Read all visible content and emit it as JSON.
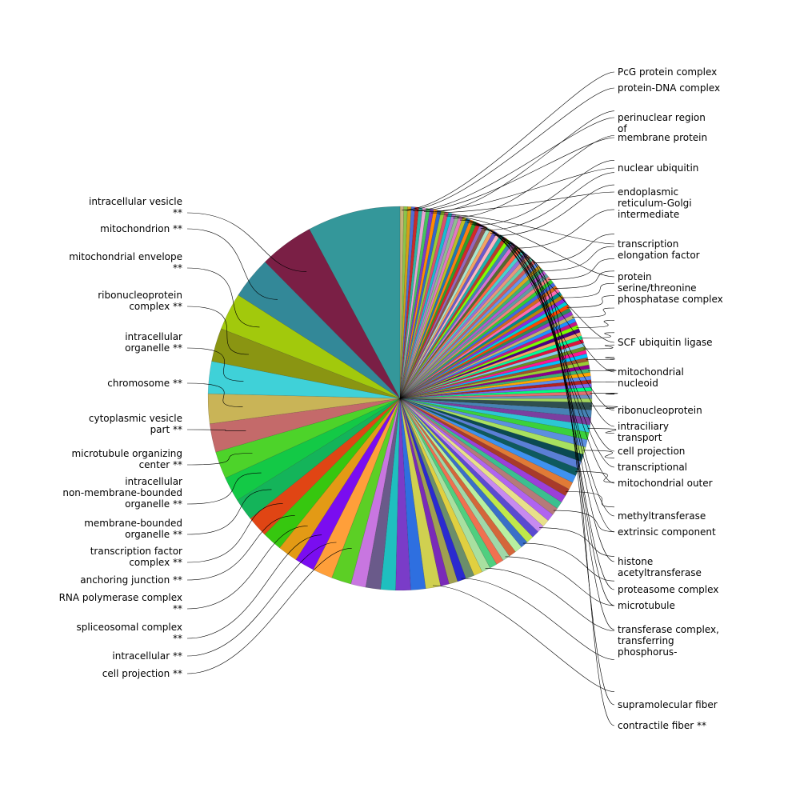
{
  "chart_data": {
    "type": "pie",
    "title": "",
    "start": "12 o'clock",
    "direction": "clockwise",
    "labels_with_markers": "**",
    "slices": [
      {
        "label": "PcG protein complex",
        "value": 0.3,
        "color": "#c8b27a"
      },
      {
        "label": "protein-DNA complex",
        "value": 0.3,
        "color": "#8bc34a"
      },
      {
        "label": "",
        "value": 0.3,
        "color": "#d4a017"
      },
      {
        "label": "perinuclear region of",
        "value": 0.3,
        "color": "#4f6cd6"
      },
      {
        "label": "membrane protein",
        "value": 0.3,
        "color": "#c92a2a"
      },
      {
        "label": "",
        "value": 0.3,
        "color": "#2fb5a4"
      },
      {
        "label": "nuclear ubiquitin",
        "value": 0.3,
        "color": "#e6a5d6"
      },
      {
        "label": "",
        "value": 0.3,
        "color": "#45c45c"
      },
      {
        "label": "endoplasmic reticulum-Golgi intermediate",
        "value": 0.3,
        "color": "#7a3cc8"
      },
      {
        "label": "",
        "value": 0.3,
        "color": "#ff8c00"
      },
      {
        "label": "transcription elongation factor",
        "value": 0.3,
        "color": "#3366cc"
      },
      {
        "label": "",
        "value": 0.3,
        "color": "#9acd32"
      },
      {
        "label": "protein serine/threonine phosphatase complex",
        "value": 0.3,
        "color": "#d94f70"
      },
      {
        "label": "",
        "value": 0.3,
        "color": "#17becf"
      },
      {
        "label": "SCF ubiquitin ligase",
        "value": 0.3,
        "color": "#b27ad4"
      },
      {
        "label": "",
        "value": 0.3,
        "color": "#8fbc8f"
      },
      {
        "label": "mitochondrial nucleoid",
        "value": 0.3,
        "color": "#e377c2"
      },
      {
        "label": "",
        "value": 0.3,
        "color": "#bcbd22"
      },
      {
        "label": "ribonucleoprotein",
        "value": 0.3,
        "color": "#1f77b4"
      },
      {
        "label": "intraciliary transport",
        "value": 0.3,
        "color": "#ff7f0e"
      },
      {
        "label": "cell projection",
        "value": 0.3,
        "color": "#2ca02c"
      },
      {
        "label": "",
        "value": 0.3,
        "color": "#d62728"
      },
      {
        "label": "transcriptional",
        "value": 0.3,
        "color": "#9467bd"
      },
      {
        "label": "mitochondrial outer",
        "value": 0.3,
        "color": "#8c564b"
      },
      {
        "label": "",
        "value": 0.3,
        "color": "#a8e6cf"
      },
      {
        "label": "methyltransferase",
        "value": 0.3,
        "color": "#f4a261"
      },
      {
        "label": "extrinsic component",
        "value": 0.3,
        "color": "#6a5acd"
      },
      {
        "label": "",
        "value": 0.3,
        "color": "#ffb6c1"
      },
      {
        "label": "histone acetyltransferase",
        "value": 0.3,
        "color": "#20b2aa"
      },
      {
        "label": "proteasome complex",
        "value": 0.3,
        "color": "#c0392b"
      },
      {
        "label": "microtubule",
        "value": 0.3,
        "color": "#7fff00"
      },
      {
        "label": "transferase complex, transferring phosphorus-",
        "value": 0.3,
        "color": "#4682b4"
      },
      {
        "label": "",
        "value": 0.3,
        "color": "#da70d6"
      },
      {
        "label": "",
        "value": 0.3,
        "color": "#556b2f"
      },
      {
        "label": "supramolecular fiber",
        "value": 0.3,
        "color": "#ff6347"
      },
      {
        "label": "",
        "value": 0.3,
        "color": "#48d1cc"
      },
      {
        "label": "contractile fiber **",
        "value": 0.3,
        "color": "#9370db"
      },
      {
        "label": "",
        "value": 0.3,
        "color": "#e9967a"
      },
      {
        "label": "",
        "value": 0.3,
        "color": "#66cdaa"
      },
      {
        "label": "",
        "value": 0.3,
        "color": "#cd5c5c"
      },
      {
        "label": "",
        "value": 0.3,
        "color": "#6495ed"
      },
      {
        "label": "",
        "value": 0.3,
        "color": "#daa520"
      },
      {
        "label": "",
        "value": 0.3,
        "color": "#3cb371"
      },
      {
        "label": "",
        "value": 0.3,
        "color": "#ba55d3"
      },
      {
        "label": "",
        "value": 0.3,
        "color": "#5f9ea0"
      },
      {
        "label": "",
        "value": 0.3,
        "color": "#f08080"
      },
      {
        "label": "",
        "value": 0.3,
        "color": "#32cd32"
      },
      {
        "label": "",
        "value": 0.3,
        "color": "#4169e1"
      },
      {
        "label": "",
        "value": 0.3,
        "color": "#d2691e"
      },
      {
        "label": "",
        "value": 0.3,
        "color": "#ff69b4"
      },
      {
        "label": "",
        "value": 0.3,
        "color": "#008b8b"
      },
      {
        "label": "",
        "value": 0.3,
        "color": "#b8860b"
      },
      {
        "label": "",
        "value": 0.3,
        "color": "#8a2be2"
      },
      {
        "label": "",
        "value": 0.3,
        "color": "#00ced1"
      },
      {
        "label": "",
        "value": 0.3,
        "color": "#ff4500"
      },
      {
        "label": "",
        "value": 0.3,
        "color": "#2e8b57"
      },
      {
        "label": "",
        "value": 0.3,
        "color": "#9932cc"
      },
      {
        "label": "",
        "value": 0.3,
        "color": "#bdb76b"
      },
      {
        "label": "",
        "value": 0.3,
        "color": "#1e90ff"
      },
      {
        "label": "",
        "value": 0.3,
        "color": "#c71585"
      },
      {
        "label": "",
        "value": 0.3,
        "color": "#7cfc00"
      },
      {
        "label": "",
        "value": 0.3,
        "color": "#4b0082"
      },
      {
        "label": "",
        "value": 0.3,
        "color": "#f4a460"
      },
      {
        "label": "",
        "value": 0.3,
        "color": "#00fa9a"
      },
      {
        "label": "",
        "value": 0.3,
        "color": "#dc143c"
      },
      {
        "label": "",
        "value": 0.3,
        "color": "#87ceeb"
      },
      {
        "label": "",
        "value": 0.3,
        "color": "#6b8e23"
      },
      {
        "label": "",
        "value": 0.3,
        "color": "#ff1493"
      },
      {
        "label": "",
        "value": 0.3,
        "color": "#00bfff"
      },
      {
        "label": "",
        "value": 0.3,
        "color": "#a0522d"
      },
      {
        "label": "",
        "value": 0.3,
        "color": "#9acd32"
      },
      {
        "label": "",
        "value": 0.3,
        "color": "#8b008b"
      },
      {
        "label": "",
        "value": 0.3,
        "color": "#3cb371"
      },
      {
        "label": "",
        "value": 0.3,
        "color": "#ffa500"
      },
      {
        "label": "",
        "value": 0.3,
        "color": "#5b8def"
      },
      {
        "label": "",
        "value": 0.3,
        "color": "#b22222"
      },
      {
        "label": "",
        "value": 0.3,
        "color": "#7b68ee"
      },
      {
        "label": "",
        "value": 0.3,
        "color": "#00ff7f"
      },
      {
        "label": "",
        "value": 0.3,
        "color": "#e36f6f"
      },
      {
        "label": "",
        "value": 0.3,
        "color": "#6c8ebf"
      },
      {
        "label": "",
        "value": 0.3,
        "color": "#a3d65c"
      },
      {
        "label": "",
        "value": 0.6,
        "color": "#2f4f4f"
      },
      {
        "label": "",
        "value": 0.6,
        "color": "#4682b4"
      },
      {
        "label": "",
        "value": 0.6,
        "color": "#7b3fa0"
      },
      {
        "label": "",
        "value": 0.6,
        "color": "#2cc7d4"
      },
      {
        "label": "",
        "value": 0.6,
        "color": "#3bd13b"
      },
      {
        "label": "",
        "value": 0.6,
        "color": "#5c8fe0"
      },
      {
        "label": "",
        "value": 0.6,
        "color": "#a8e05f"
      },
      {
        "label": "",
        "value": 0.6,
        "color": "#0b4a52"
      },
      {
        "label": "",
        "value": 0.6,
        "color": "#5a7fd6"
      },
      {
        "label": "",
        "value": 0.6,
        "color": "#0e5a5f"
      },
      {
        "label": "",
        "value": 0.6,
        "color": "#3e92f0"
      },
      {
        "label": "",
        "value": 0.6,
        "color": "#e07a36"
      },
      {
        "label": "",
        "value": 0.6,
        "color": "#a83a2a"
      },
      {
        "label": "",
        "value": 0.6,
        "color": "#9b3fd9"
      },
      {
        "label": "",
        "value": 0.6,
        "color": "#3bbf8f"
      },
      {
        "label": "",
        "value": 0.6,
        "color": "#b57a7a"
      },
      {
        "label": "",
        "value": 0.6,
        "color": "#b063f0"
      },
      {
        "label": "",
        "value": 0.6,
        "color": "#e8e08a"
      },
      {
        "label": "",
        "value": 0.6,
        "color": "#c78af0"
      },
      {
        "label": "",
        "value": 0.6,
        "color": "#5a4ad0"
      },
      {
        "label": "",
        "value": 0.6,
        "color": "#c0e84a"
      },
      {
        "label": "",
        "value": 0.6,
        "color": "#3a6fc8"
      },
      {
        "label": "",
        "value": 0.6,
        "color": "#b8f0a0"
      },
      {
        "label": "",
        "value": 0.6,
        "color": "#d4663a"
      },
      {
        "label": "",
        "value": 0.6,
        "color": "#a0d8a8"
      },
      {
        "label": "",
        "value": 0.6,
        "color": "#f07050"
      },
      {
        "label": "",
        "value": 0.6,
        "color": "#4fcf7f"
      },
      {
        "label": "",
        "value": 0.7,
        "color": "#a8e0a0"
      },
      {
        "label": "",
        "value": 0.7,
        "color": "#e0d040"
      },
      {
        "label": "",
        "value": 0.7,
        "color": "#6b8e6b"
      },
      {
        "label": "",
        "value": 0.7,
        "color": "#2a2ad0"
      },
      {
        "label": "",
        "value": 0.7,
        "color": "#a0a050"
      },
      {
        "label": "",
        "value": 0.7,
        "color": "#7a2ab8"
      },
      {
        "label": "",
        "value": 1.2,
        "color": "#d0d050"
      },
      {
        "label": "",
        "value": 1.2,
        "color": "#2e6fe0"
      },
      {
        "label": "",
        "value": 1.2,
        "color": "#7a3cc8"
      },
      {
        "label": "",
        "value": 1.2,
        "color": "#1fbfbf"
      },
      {
        "label": "",
        "value": 1.2,
        "color": "#6a5a8a"
      },
      {
        "label": "",
        "value": 1.2,
        "color": "#c876e0"
      },
      {
        "label": "cell projection **",
        "value": 1.6,
        "color": "#5ccf25"
      },
      {
        "label": "intracellular **",
        "value": 1.6,
        "color": "#ff9f3a"
      },
      {
        "label": "spliceosomal complex **",
        "value": 1.6,
        "color": "#7a0df0"
      },
      {
        "label": "RNA polymerase complex **",
        "value": 1.6,
        "color": "#e39a15"
      },
      {
        "label": "anchoring junction **",
        "value": 1.6,
        "color": "#36c70f"
      },
      {
        "label": "transcription factor complex **",
        "value": 1.7,
        "color": "#e04514"
      },
      {
        "label": "membrane-bounded organelle **",
        "value": 1.8,
        "color": "#14b45a"
      },
      {
        "label": "intracellular non-membrane-bounded organelle **",
        "value": 2.0,
        "color": "#13c946"
      },
      {
        "label": "microtubule organizing center **",
        "value": 2.2,
        "color": "#4dd32a"
      },
      {
        "label": "cytoplasmic vesicle part **",
        "value": 2.3,
        "color": "#c46a6a"
      },
      {
        "label": "chromosome **",
        "value": 2.4,
        "color": "#c9b457"
      },
      {
        "label": "intracellular organelle **",
        "value": 2.6,
        "color": "#3fd1d8"
      },
      {
        "label": "ribonucleoprotein complex **",
        "value": 2.7,
        "color": "#8a9512"
      },
      {
        "label": "mitochondrial envelope **",
        "value": 3.0,
        "color": "#a2c90c"
      },
      {
        "label": "mitochondrion **",
        "value": 3.4,
        "color": "#338898"
      },
      {
        "label": "intracellular vesicle **",
        "value": 4.4,
        "color": "#7a1f45"
      },
      {
        "label": "",
        "value": 7.5,
        "color": "#34979a"
      }
    ],
    "left_labels": [
      "intracellular vesicle **",
      "mitochondrion **",
      "mitochondrial envelope **",
      "ribonucleoprotein complex **",
      "intracellular organelle **",
      "chromosome **",
      "cytoplasmic vesicle part **",
      "microtubule organizing center **",
      "intracellular non-membrane-bounded organelle **",
      "membrane-bounded organelle **",
      "transcription factor complex **",
      "anchoring junction **",
      "RNA polymerase complex **",
      "spliceosomal complex **",
      "intracellular **",
      "cell projection **"
    ],
    "right_labels": [
      "PcG protein complex",
      "protein-DNA complex",
      "perinuclear region of",
      "membrane protein",
      "nuclear ubiquitin",
      "endoplasmic reticulum-Golgi intermediate",
      "transcription elongation factor",
      "protein serine/threonine phosphatase complex",
      "SCF ubiquitin ligase",
      "mitochondrial nucleoid",
      "ribonucleoprotein",
      "intraciliary transport",
      "cell projection",
      "transcriptional",
      "mitochondrial outer",
      "methyltransferase",
      "extrinsic component",
      "histone acetyltransferase",
      "proteasome complex",
      "microtubule",
      "transferase complex, transferring phosphorus-",
      "supramolecular fiber",
      "contractile fiber **"
    ]
  }
}
